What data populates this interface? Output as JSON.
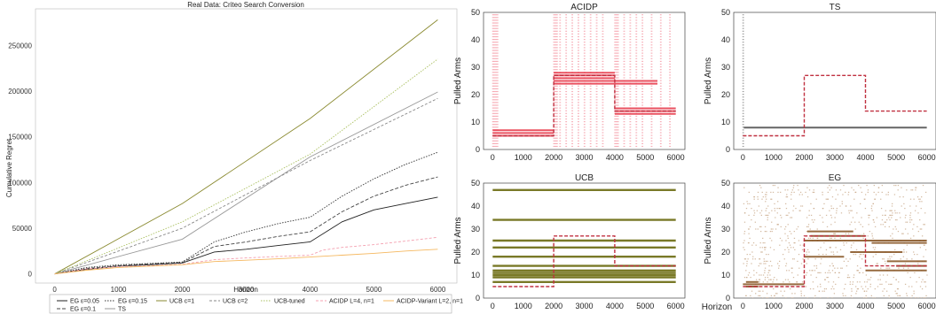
{
  "chart_data": [
    {
      "id": "main",
      "type": "line",
      "title": "Real Data: Criteo Search Conversion",
      "xlabel": "Horizon",
      "ylabel": "Cumulative Regret",
      "xlim": [
        -300,
        6300
      ],
      "ylim": [
        -10000,
        290000
      ],
      "xticks": [
        0,
        1000,
        2000,
        3000,
        4000,
        5000,
        6000
      ],
      "yticks": [
        0,
        50000,
        100000,
        150000,
        200000,
        250000
      ],
      "legend": "bottom",
      "series": [
        {
          "name": "EG ε=0.05",
          "color": "#222222",
          "dash": "",
          "x": [
            0,
            500,
            1000,
            1500,
            2000,
            2500,
            3000,
            3500,
            4000,
            4500,
            5000,
            5500,
            6000
          ],
          "y": [
            0,
            5000,
            8500,
            10000,
            12000,
            24000,
            27000,
            31000,
            35000,
            57000,
            70000,
            77000,
            84000
          ]
        },
        {
          "name": "EG ε=0.1",
          "color": "#444444",
          "dash": "4,2",
          "x": [
            0,
            500,
            1000,
            1500,
            2000,
            2500,
            3000,
            3500,
            4000,
            4500,
            5000,
            5500,
            6000
          ],
          "y": [
            0,
            6000,
            9000,
            11000,
            12500,
            30000,
            35000,
            41000,
            46000,
            68000,
            85000,
            97000,
            106000
          ]
        },
        {
          "name": "EG ε=0.15",
          "color": "#333333",
          "dash": "1.5,1.5",
          "x": [
            0,
            500,
            1000,
            1500,
            2000,
            2500,
            3000,
            3500,
            4000,
            4500,
            5000,
            5500,
            6000
          ],
          "y": [
            0,
            7000,
            10000,
            11500,
            13000,
            35000,
            46000,
            55000,
            62000,
            85000,
            104000,
            120000,
            133000
          ]
        },
        {
          "name": "TS",
          "color": "#999999",
          "dash": "",
          "x": [
            0,
            2000,
            4000,
            6000
          ],
          "y": [
            0,
            38000,
            128000,
            199000
          ]
        },
        {
          "name": "UCB c=1",
          "color": "#8a8a30",
          "dash": "",
          "x": [
            0,
            2000,
            4000,
            6000
          ],
          "y": [
            0,
            77000,
            170000,
            278000
          ]
        },
        {
          "name": "UCB c=2",
          "color": "#888888",
          "dash": "3,2",
          "x": [
            0,
            2000,
            4000,
            6000
          ],
          "y": [
            0,
            50000,
            124000,
            192000
          ]
        },
        {
          "name": "UCB-tuned",
          "color": "#aac060",
          "dash": "1.5,1.5",
          "x": [
            0,
            2000,
            4000,
            6000
          ],
          "y": [
            0,
            57000,
            131000,
            235000
          ]
        },
        {
          "name": "ACIDP L=4, n=1",
          "color": "#f4a0b0",
          "dash": "3,2",
          "x": [
            0,
            500,
            1000,
            1500,
            2000,
            2500,
            3000,
            3500,
            4000,
            4200,
            4500,
            5000,
            5500,
            6000
          ],
          "y": [
            0,
            5500,
            8000,
            9000,
            10500,
            15500,
            17500,
            19000,
            20500,
            26000,
            29000,
            32000,
            36000,
            40000
          ]
        },
        {
          "name": "ACIDP-Variant L=2, n=1",
          "color": "#f5b860",
          "dash": "",
          "x": [
            0,
            500,
            1000,
            1500,
            2000,
            2500,
            3000,
            3500,
            4000,
            4500,
            5000,
            5500,
            6000
          ],
          "y": [
            0,
            4000,
            7000,
            8500,
            10000,
            13500,
            15000,
            16500,
            18500,
            20500,
            22500,
            25000,
            27000
          ]
        }
      ]
    },
    {
      "id": "acidp",
      "type": "scatter",
      "title": "ACIDP",
      "xlabel": "",
      "ylabel": "Pulled Arms",
      "xlim": [
        -300,
        6300
      ],
      "ylim": [
        0,
        50
      ],
      "xticks": [
        0,
        1000,
        2000,
        3000,
        4000,
        5000,
        6000
      ],
      "yticks": [
        0,
        10,
        20,
        30,
        40,
        50
      ],
      "optimal_arm": {
        "x": [
          0,
          2000,
          2000,
          4000,
          4000,
          6000
        ],
        "y": [
          5,
          5,
          27,
          27,
          14,
          14
        ],
        "color": "#c03040"
      },
      "bands": [
        {
          "x0": 0,
          "x1": 2000,
          "arms": [
            5,
            6,
            7
          ],
          "color": "#e84050"
        },
        {
          "x0": 2000,
          "x1": 4000,
          "arms": [
            24,
            25,
            26,
            27,
            28
          ],
          "color": "#e84050"
        },
        {
          "x0": 4000,
          "x1": 6000,
          "arms": [
            13,
            14,
            15
          ],
          "color": "#e84050"
        },
        {
          "x0": 4000,
          "x1": 5400,
          "arms": [
            24,
            25
          ],
          "color": "#e84050"
        }
      ],
      "explore_columns": [
        0,
        50,
        100,
        150,
        2000,
        2050,
        2100,
        2200,
        2400,
        2600,
        2800,
        3000,
        3200,
        3400,
        3600,
        4000,
        4050,
        4100,
        4300,
        4500,
        4700,
        4900,
        5200,
        5500,
        5800
      ],
      "explore_color": "#f07080"
    },
    {
      "id": "ts",
      "type": "scatter",
      "title": "TS",
      "xlabel": "",
      "ylabel": "Pulled Arms",
      "xlim": [
        -300,
        6300
      ],
      "ylim": [
        0,
        50
      ],
      "xticks": [
        0,
        1000,
        2000,
        3000,
        4000,
        5000,
        6000
      ],
      "yticks": [
        0,
        10,
        20,
        30,
        40,
        50
      ],
      "optimal_arm": {
        "x": [
          0,
          2000,
          2000,
          4000,
          4000,
          6000
        ],
        "y": [
          5,
          5,
          27,
          27,
          14,
          14
        ],
        "color": "#c03040"
      },
      "bands": [
        {
          "x0": 30,
          "x1": 6000,
          "arms": [
            8
          ],
          "color": "#555555"
        }
      ],
      "explore_columns": [
        0
      ],
      "explore_color": "#555555"
    },
    {
      "id": "ucb",
      "type": "scatter",
      "title": "UCB",
      "xlabel": "",
      "ylabel": "Pulled Arms",
      "xlim": [
        -300,
        6300
      ],
      "ylim": [
        0,
        50
      ],
      "xticks": [
        0,
        1000,
        2000,
        3000,
        4000,
        5000,
        6000
      ],
      "yticks": [
        0,
        10,
        20,
        30,
        40,
        50
      ],
      "optimal_arm": {
        "x": [
          0,
          2000,
          2000,
          4000,
          4000,
          6000
        ],
        "y": [
          5,
          5,
          27,
          27,
          14,
          14
        ],
        "color": "#c03040"
      },
      "bands": [
        {
          "x0": 0,
          "x1": 6000,
          "arms": [
            7,
            9,
            10,
            11,
            12,
            14,
            18,
            22,
            25,
            34,
            47
          ],
          "color": "#6b6b10"
        }
      ],
      "explore_columns": [],
      "explore_color": "#6b6b10"
    },
    {
      "id": "eg",
      "type": "scatter",
      "title": "EG",
      "xlabel": "",
      "ylabel": "Pulled Arms",
      "xlim": [
        -300,
        6300
      ],
      "ylim": [
        0,
        50
      ],
      "xticks": [
        0,
        1000,
        2000,
        3000,
        4000,
        5000,
        6000
      ],
      "yticks": [
        0,
        10,
        20,
        30,
        40,
        50
      ],
      "optimal_arm": {
        "x": [
          0,
          2000,
          2000,
          4000,
          4000,
          6000
        ],
        "y": [
          5,
          5,
          27,
          27,
          14,
          14
        ],
        "color": "#c03040"
      },
      "bands": [
        {
          "x0": 0,
          "x1": 2000,
          "arms": [
            6
          ],
          "color": "#8b5a2b"
        },
        {
          "x0": 100,
          "x1": 500,
          "arms": [
            5,
            7
          ],
          "color": "#8b5a2b"
        },
        {
          "x0": 2000,
          "x1": 6000,
          "arms": [
            25
          ],
          "color": "#8b5a2b"
        },
        {
          "x0": 2100,
          "x1": 3600,
          "arms": [
            29
          ],
          "color": "#8b5a2b"
        },
        {
          "x0": 2200,
          "x1": 4000,
          "arms": [
            27
          ],
          "color": "#8b5a2b"
        },
        {
          "x0": 2000,
          "x1": 3300,
          "arms": [
            18
          ],
          "color": "#8b5a2b"
        },
        {
          "x0": 3500,
          "x1": 5200,
          "arms": [
            20
          ],
          "color": "#8b5a2b"
        },
        {
          "x0": 4200,
          "x1": 6000,
          "arms": [
            24
          ],
          "color": "#8b5a2b"
        },
        {
          "x0": 4700,
          "x1": 6000,
          "arms": [
            16
          ],
          "color": "#8b5a2b"
        },
        {
          "x0": 4000,
          "x1": 6000,
          "arms": [
            12
          ],
          "color": "#8b5a2b"
        },
        {
          "x0": 5000,
          "x1": 6000,
          "arms": [
            14
          ],
          "color": "#8b5a2b"
        }
      ],
      "explore_columns": [],
      "explore_color": "#c9a98a"
    }
  ],
  "shared_xlabel": "Horizon"
}
